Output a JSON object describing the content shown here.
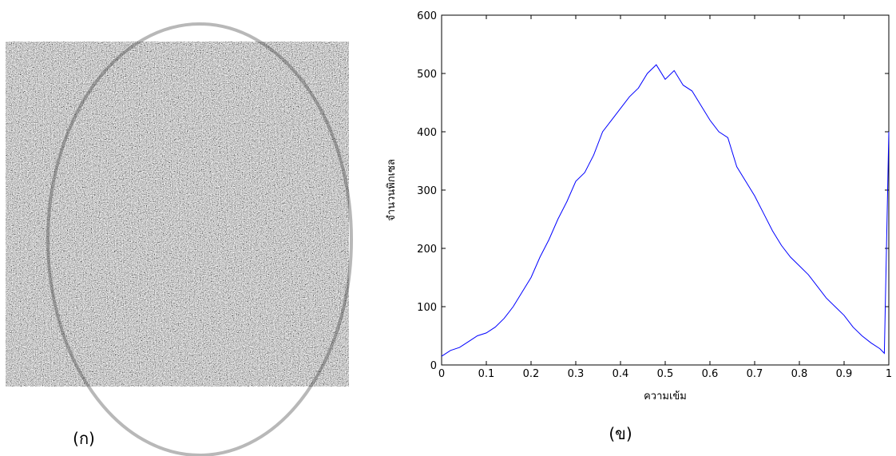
{
  "chart_data": {
    "type": "line",
    "xlabel": "ความเข้ม",
    "ylabel": "จำนวนพิกเซล",
    "x": [
      0,
      0.02,
      0.04,
      0.06,
      0.08,
      0.1,
      0.12,
      0.14,
      0.16,
      0.18,
      0.2,
      0.22,
      0.24,
      0.26,
      0.28,
      0.3,
      0.32,
      0.34,
      0.36,
      0.38,
      0.4,
      0.42,
      0.44,
      0.46,
      0.48,
      0.5,
      0.52,
      0.54,
      0.56,
      0.58,
      0.6,
      0.62,
      0.64,
      0.66,
      0.68,
      0.7,
      0.72,
      0.74,
      0.76,
      0.78,
      0.8,
      0.82,
      0.84,
      0.86,
      0.88,
      0.9,
      0.92,
      0.94,
      0.96,
      0.98,
      0.99,
      1
    ],
    "series": [
      {
        "color": "#0000ff",
        "values": [
          15,
          25,
          30,
          40,
          50,
          55,
          65,
          80,
          100,
          125,
          150,
          185,
          215,
          250,
          280,
          315,
          330,
          360,
          400,
          420,
          440,
          460,
          475,
          500,
          515,
          490,
          505,
          480,
          470,
          445,
          420,
          400,
          390,
          340,
          315,
          290,
          260,
          230,
          205,
          185,
          170,
          155,
          135,
          115,
          100,
          85,
          65,
          50,
          38,
          28,
          20,
          400
        ]
      }
    ],
    "xlim": [
      0,
      1
    ],
    "ylim": [
      0,
      600
    ],
    "xticks": [
      0,
      0.1,
      0.2,
      0.3,
      0.4,
      0.5,
      0.6,
      0.7,
      0.8,
      0.9,
      1
    ],
    "yticks": [
      0,
      100,
      200,
      300,
      400,
      500,
      600
    ]
  },
  "captions": [
    "(ก)",
    "(ข)"
  ]
}
